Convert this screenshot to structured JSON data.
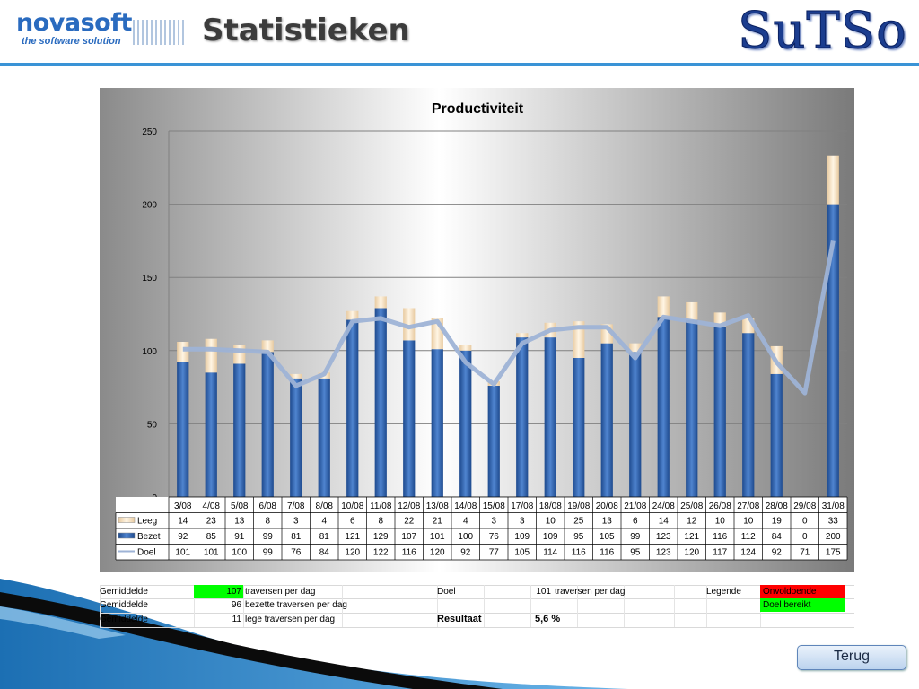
{
  "header": {
    "logo_left_name": "novasoft",
    "logo_left_tagline": "the software solution",
    "title": "Statistieken",
    "logo_right": "SuTSo"
  },
  "footer": {
    "back_label": "Terug"
  },
  "colors": {
    "bar_bezet": "#2b5aa4",
    "bar_leeg": "#f3e1bf",
    "line_doel": "#9eb3d6",
    "red": "#ff0000",
    "green": "#00ff00"
  },
  "chart_data": {
    "type": "bar",
    "title": "Productiviteit",
    "categories": [
      "3/08",
      "4/08",
      "5/08",
      "6/08",
      "7/08",
      "8/08",
      "10/08",
      "11/08",
      "12/08",
      "13/08",
      "14/08",
      "15/08",
      "17/08",
      "18/08",
      "19/08",
      "20/08",
      "21/08",
      "24/08",
      "25/08",
      "26/08",
      "27/08",
      "28/08",
      "29/08",
      "31/08"
    ],
    "ylim": [
      0,
      250
    ],
    "yticks": [
      0,
      50,
      100,
      150,
      200,
      250
    ],
    "grid": true,
    "stacked": true,
    "series": [
      {
        "name": "Leeg",
        "kind": "bar",
        "values": [
          14,
          23,
          13,
          8,
          3,
          4,
          6,
          8,
          22,
          21,
          4,
          3,
          3,
          10,
          25,
          13,
          6,
          14,
          12,
          10,
          10,
          19,
          0,
          33
        ]
      },
      {
        "name": "Bezet",
        "kind": "bar",
        "values": [
          92,
          85,
          91,
          99,
          81,
          81,
          121,
          129,
          107,
          101,
          100,
          76,
          109,
          109,
          95,
          105,
          99,
          123,
          121,
          116,
          112,
          84,
          0,
          200
        ]
      },
      {
        "name": "Doel",
        "kind": "line",
        "values": [
          101,
          101,
          100,
          99,
          76,
          84,
          120,
          122,
          116,
          120,
          92,
          77,
          105,
          114,
          116,
          116,
          95,
          123,
          120,
          117,
          124,
          92,
          71,
          175
        ]
      }
    ],
    "table_order": [
      "Leeg",
      "Bezet",
      "Doel"
    ]
  },
  "summary": {
    "row1": {
      "label": "Gemiddelde",
      "value": "107",
      "text": "traversen per dag"
    },
    "row2": {
      "label": "Gemiddelde",
      "value": "96",
      "text": "bezette traversen per dag"
    },
    "row3": {
      "label": "Gemiddelde",
      "value": "11",
      "text": "lege traversen per dag"
    },
    "doel": {
      "label": "Doel",
      "value": "101",
      "text": "traversen per dag"
    },
    "resultaat": {
      "label": "Resultaat",
      "value": "5,6 %"
    },
    "legend": {
      "label": "Legende",
      "red_label": "Onvoldoende",
      "green_label": "Doel bereikt"
    }
  }
}
